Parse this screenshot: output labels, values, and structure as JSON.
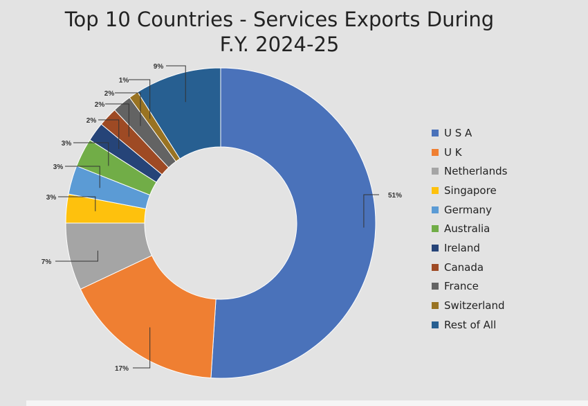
{
  "chart_data": {
    "type": "pie",
    "donut": true,
    "title_lines": [
      "Top 10 Countries - Services Exports During",
      "F.Y. 2024-25"
    ],
    "legend_position": "right",
    "slices": [
      {
        "name": "U S A",
        "value": 51,
        "label": "51%",
        "color": "#4a72ba"
      },
      {
        "name": "U K",
        "value": 17,
        "label": "17%",
        "color": "#ef7f32"
      },
      {
        "name": "Netherlands",
        "value": 7,
        "label": "7%",
        "color": "#a5a5a5"
      },
      {
        "name": "Singapore",
        "value": 3,
        "label": "3%",
        "color": "#fec10d"
      },
      {
        "name": "Germany",
        "value": 3,
        "label": "3%",
        "color": "#5b9bd5"
      },
      {
        "name": "Australia",
        "value": 3,
        "label": "3%",
        "color": "#71ad47"
      },
      {
        "name": "Ireland",
        "value": 2,
        "label": "2%",
        "color": "#264478"
      },
      {
        "name": "Canada",
        "value": 2,
        "label": "2%",
        "color": "#9e4a24"
      },
      {
        "name": "France",
        "value": 2,
        "label": "2%",
        "color": "#636363"
      },
      {
        "name": "Switzerland",
        "value": 1,
        "label": "1%",
        "color": "#997322"
      },
      {
        "name": "Rest of All",
        "value": 9,
        "label": "9%",
        "color": "#275f91"
      }
    ]
  }
}
